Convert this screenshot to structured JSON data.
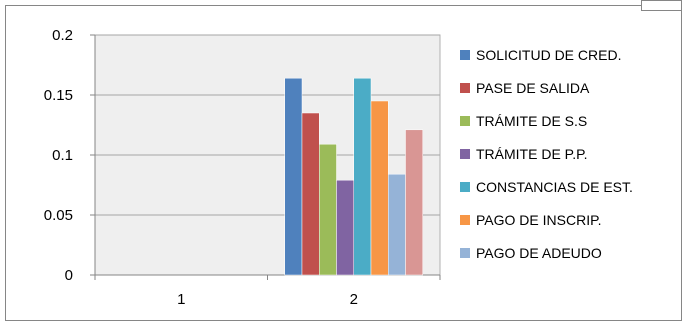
{
  "chart_data": {
    "type": "bar",
    "title": "",
    "xlabel": "",
    "ylabel": "",
    "categories": [
      "1",
      "2"
    ],
    "ylim": [
      0,
      0.2
    ],
    "yticks": [
      "0",
      "0.05",
      "0.1",
      "0.15",
      "0.2"
    ],
    "ytick_values": [
      0,
      0.05,
      0.1,
      0.15,
      0.2
    ],
    "grid": true,
    "legend_position": "right",
    "series": [
      {
        "name": "SOLICITUD DE CRED.",
        "color": "#4F81BD",
        "values": [
          null,
          0.164
        ]
      },
      {
        "name": "PASE DE SALIDA",
        "color": "#C0504D",
        "values": [
          null,
          0.135
        ]
      },
      {
        "name": "TRÁMITE DE S.S",
        "color": "#9BBB59",
        "values": [
          null,
          0.109
        ]
      },
      {
        "name": "TRÁMITE DE P.P.",
        "color": "#8064A2",
        "values": [
          null,
          0.079
        ]
      },
      {
        "name": "CONSTANCIAS DE EST.",
        "color": "#4BACC6",
        "values": [
          null,
          0.164
        ]
      },
      {
        "name": "PAGO DE INSCRIP.",
        "color": "#F79646",
        "values": [
          null,
          0.145
        ]
      },
      {
        "name": "PAGO DE ADEUDO",
        "color": "#95B3D7",
        "values": [
          null,
          0.084
        ]
      },
      {
        "name": "",
        "color": "#D99694",
        "values": [
          null,
          0.121
        ]
      }
    ]
  }
}
